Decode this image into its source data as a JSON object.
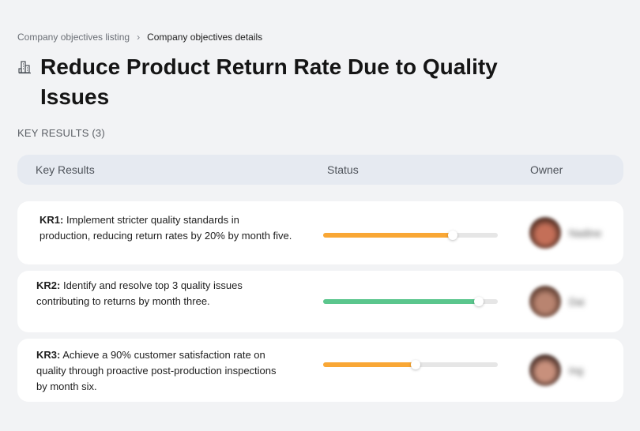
{
  "breadcrumb": {
    "parent": "Company objectives listing",
    "separator": "›",
    "current": "Company objectives details"
  },
  "objective": {
    "icon": "building-icon",
    "title": "Reduce Product Return Rate Due to Quality Issues"
  },
  "key_results_section": {
    "label": "KEY RESULTS (3)"
  },
  "table": {
    "columns": {
      "key_results": "Key Results",
      "status": "Status",
      "owner": "Owner"
    },
    "rows": [
      {
        "id": "KR1:",
        "text": " Implement stricter quality standards in production, reducing return rates by 20% by month five.",
        "progress": 0.74,
        "status_color": "#f9a735",
        "owner_name": "Nadine",
        "avatar_colors": [
          "#c46f58",
          "#4a2a20"
        ]
      },
      {
        "id": "KR2:",
        "text": " Identify and resolve top 3 quality issues contributing to returns by month three.",
        "progress": 0.89,
        "status_color": "#5bc68d",
        "owner_name": "Dai",
        "avatar_colors": [
          "#b98470",
          "#5a3a2e"
        ]
      },
      {
        "id": "KR3:",
        "text": " Achieve a 90% customer satisfaction rate on quality through proactive post-production inspections by month six.",
        "progress": 0.53,
        "status_color": "#f9a735",
        "owner_name": "Ing",
        "avatar_colors": [
          "#c8907c",
          "#3e2620"
        ]
      }
    ]
  }
}
